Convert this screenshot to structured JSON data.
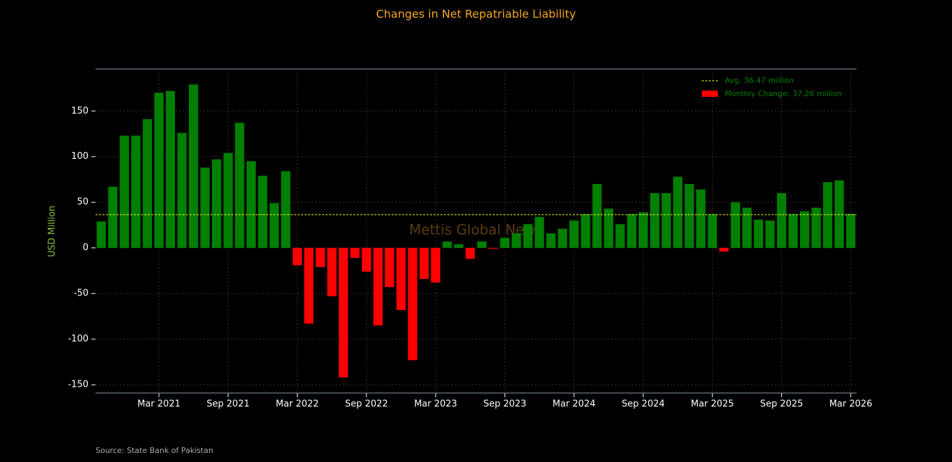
{
  "chart_data": {
    "type": "bar",
    "title": "Changes in Net Repatriable Liability",
    "y_label": "USD Million",
    "watermark": "Mettis Global News",
    "source": "Source: State Bank of Pakistan",
    "categories": [
      null,
      null,
      null,
      null,
      null,
      "Mar 2021",
      null,
      null,
      null,
      null,
      null,
      "Sep 2021",
      null,
      null,
      null,
      null,
      null,
      "Mar 2022",
      null,
      null,
      null,
      null,
      null,
      "Sep 2022",
      null,
      null,
      null,
      null,
      null,
      "Mar 2023",
      null,
      null,
      null,
      null,
      null,
      "Sep 2023",
      null,
      null,
      null,
      null,
      null,
      "Mar 2024",
      null,
      null,
      null,
      null,
      null,
      "Sep 2024",
      null,
      null,
      null,
      null,
      null,
      "Mar 2025",
      null,
      null,
      null,
      null,
      null,
      "Sep 2025",
      null,
      null,
      null,
      null,
      null,
      "Mar 2026"
    ],
    "series": [
      {
        "name": "Monthly Change: 37.26 million",
        "color": "#008000",
        "negative_color": "#ff0000",
        "values": [
          29,
          67,
          123,
          123,
          141,
          170,
          172,
          126,
          179,
          88,
          97,
          104,
          137,
          95,
          79,
          49,
          84,
          -19,
          -83,
          -21,
          -53,
          -142,
          -11,
          -26,
          -85,
          -43,
          -68,
          -123,
          -34,
          -38,
          7,
          4,
          -12,
          7,
          -1,
          11,
          16,
          26,
          34,
          16,
          21,
          30,
          37,
          70,
          43,
          26,
          37,
          39,
          60,
          60,
          78,
          70,
          64,
          37,
          -4,
          50,
          44,
          31,
          30,
          60,
          37,
          40,
          44,
          72,
          74,
          37.26
        ]
      }
    ],
    "average": {
      "name": "Avg. 36.47 million",
      "value": 36.47,
      "color": "#ffff00"
    },
    "ylim": [
      -159,
      196
    ],
    "yticks": [
      -150,
      -100,
      -50,
      0,
      50,
      100,
      150
    ],
    "grid": true,
    "legend": "upper right"
  }
}
